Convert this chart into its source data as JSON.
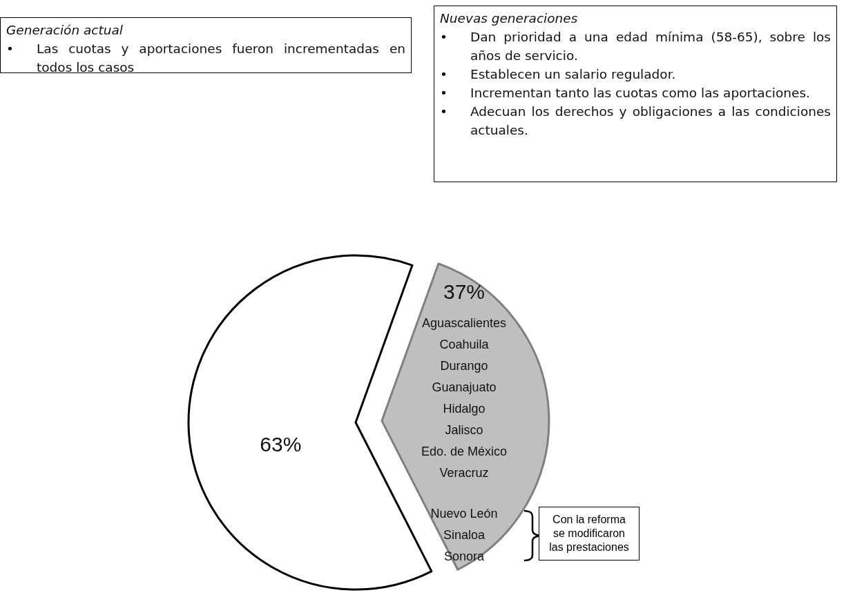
{
  "chart_data": {
    "type": "pie",
    "categories": [
      null,
      null
    ],
    "values": [
      63,
      37
    ],
    "colors": [
      "#ffffff",
      "#bfbfbf"
    ],
    "value_labels": [
      "63%",
      "37%"
    ],
    "annotations": [
      "Generación actual",
      "• Las cuotas y aportaciones fueron incrementadas en todos los casos",
      "Nuevas generaciones",
      "• Dan prioridad a una edad mínima (58-65), sobre los años de servicio.",
      "• Establecen un salario regulador.",
      "• Incrementan tanto las cuotas como las aportaciones.",
      "• Adecuan los derechos y obligaciones a las condiciones actuales.",
      "Aguascalientes\nCoahuila\nDurango\nGuanajuato\nHidalgo\nJalisco\nEdo. de México\nVeracruz",
      "Nuevo León\nSinaloa\nSonora",
      "Con la reforma\nse modificaron\nlas prestaciones"
    ]
  }
}
